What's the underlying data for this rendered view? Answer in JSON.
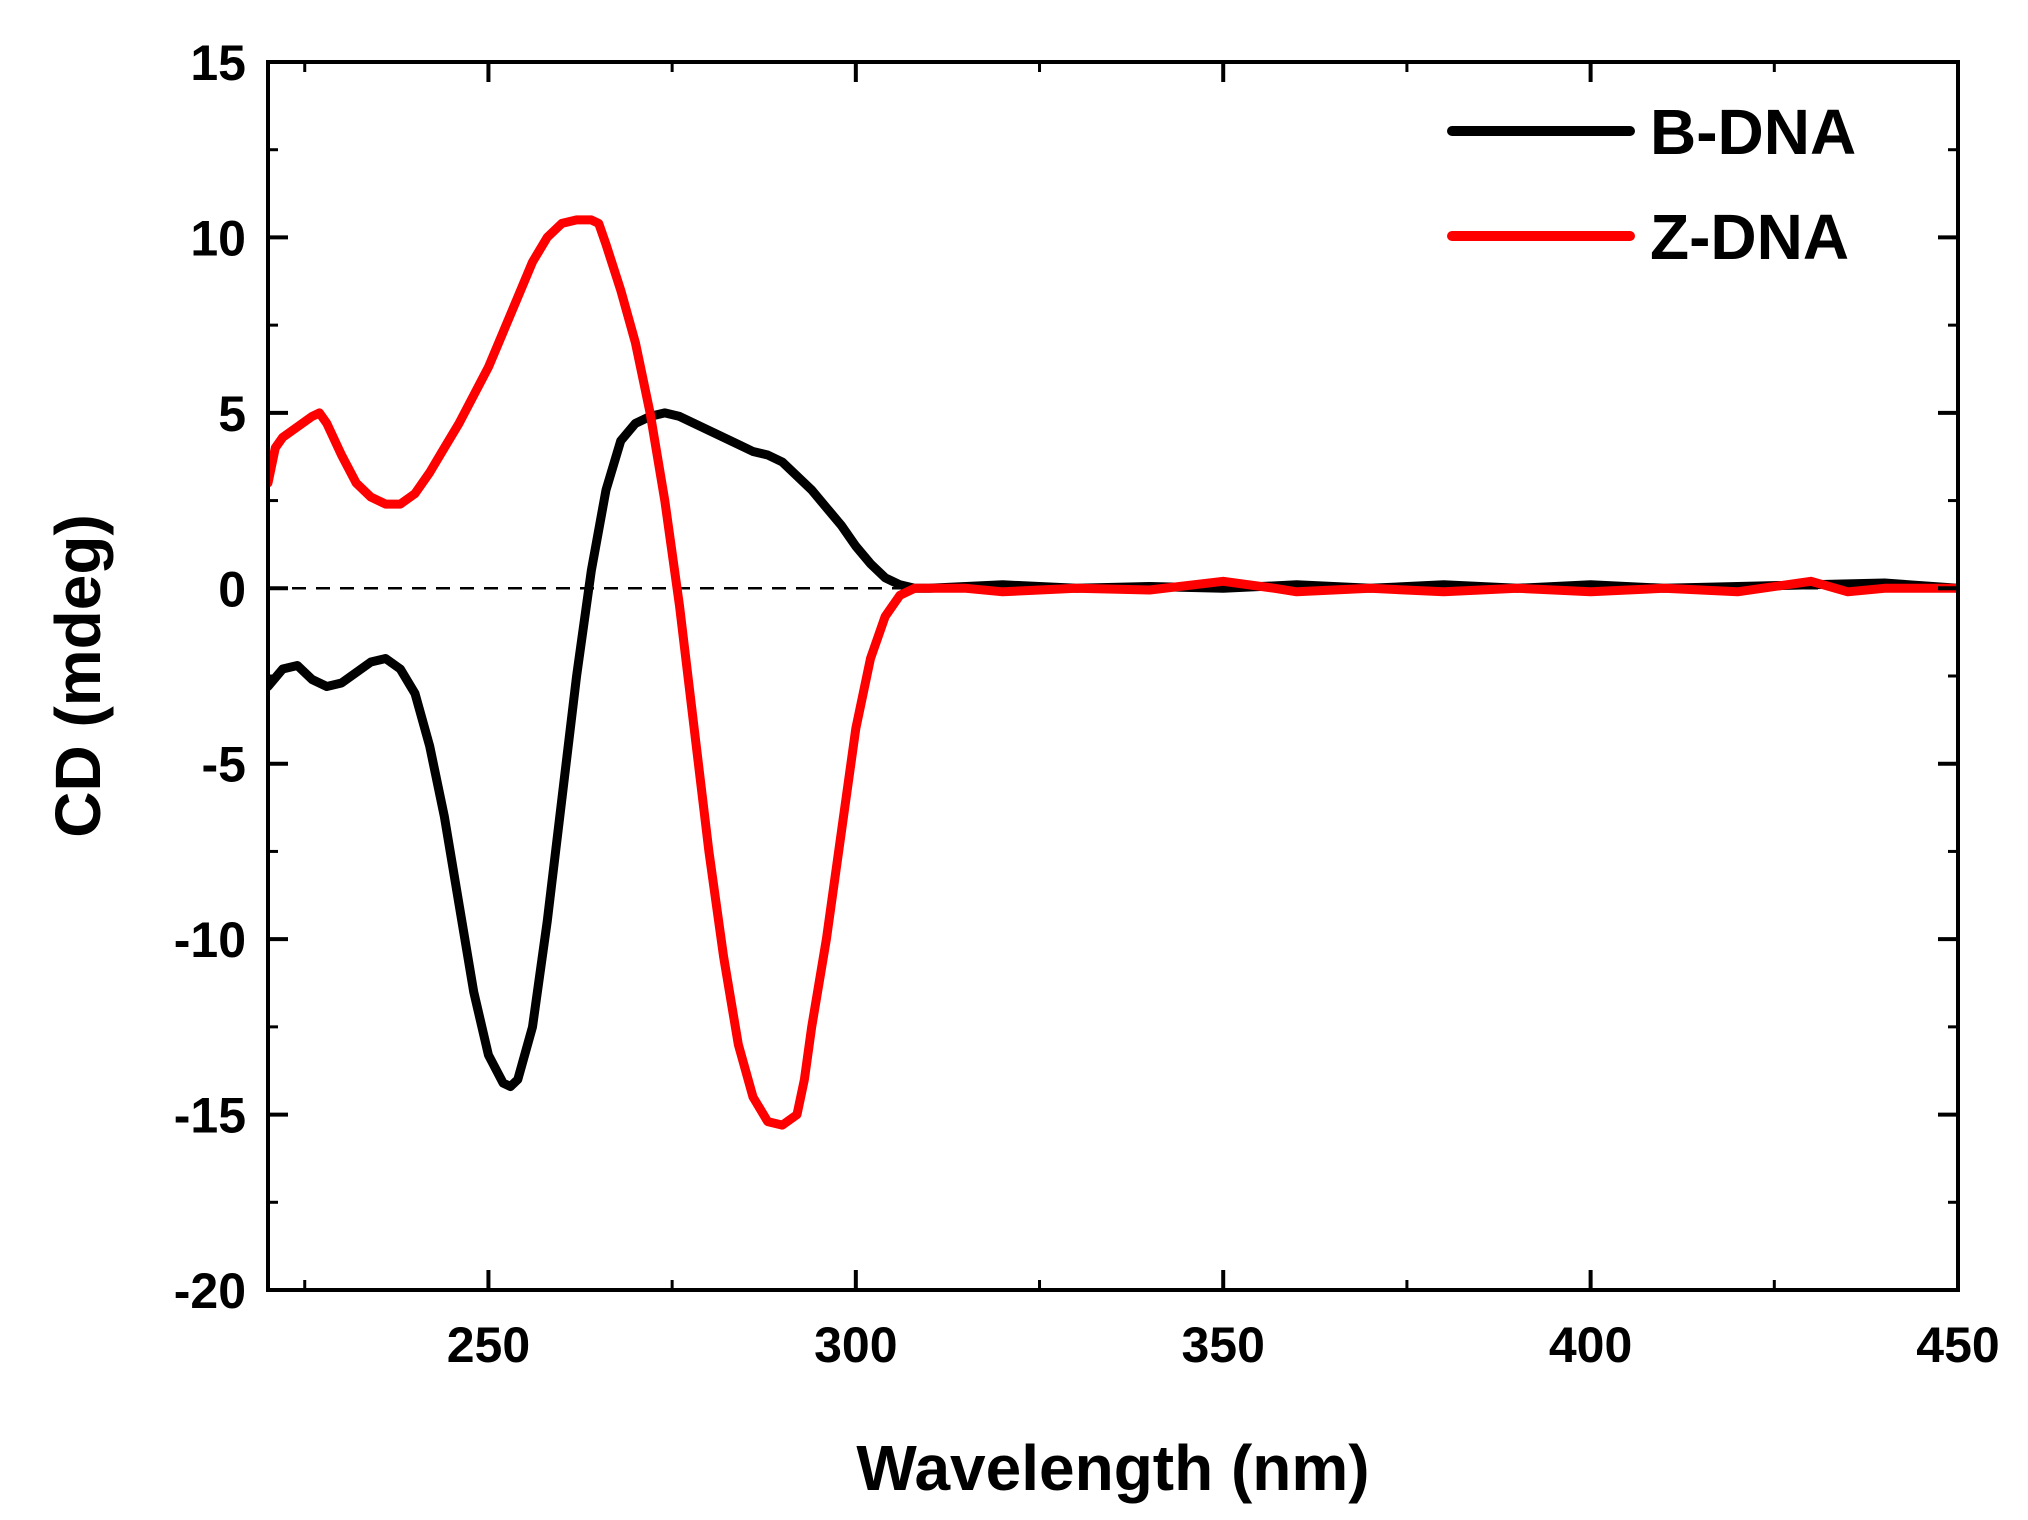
{
  "chart_data": {
    "type": "line",
    "title": "",
    "xlabel": "Wavelength (nm)",
    "ylabel": "CD (mdeg)",
    "xlim": [
      220,
      450
    ],
    "ylim": [
      -20,
      15
    ],
    "x_ticks": [
      250,
      300,
      350,
      400,
      450
    ],
    "y_ticks": [
      -20,
      -15,
      -10,
      -5,
      0,
      5,
      10,
      15
    ],
    "x_tick_labels": [
      "250",
      "300",
      "350",
      "400",
      "450"
    ],
    "y_tick_labels": [
      "-20",
      "-15",
      "-10",
      "-5",
      "0",
      "5",
      "10",
      "15"
    ],
    "reference_line": {
      "y": 0,
      "style": "dashed"
    },
    "legend_position": "top-right",
    "series": [
      {
        "name": "B-DNA",
        "color": "#000000",
        "x": [
          220,
          222,
          224,
          226,
          228,
          230,
          232,
          234,
          236,
          238,
          240,
          242,
          244,
          246,
          248,
          250,
          252,
          253,
          254,
          256,
          258,
          260,
          262,
          264,
          266,
          268,
          270,
          272,
          274,
          276,
          278,
          280,
          282,
          284,
          286,
          288,
          290,
          292,
          294,
          296,
          298,
          300,
          302,
          304,
          306,
          308,
          310,
          315,
          320,
          330,
          340,
          350,
          360,
          370,
          380,
          390,
          400,
          410,
          420,
          430,
          440,
          450
        ],
        "y": [
          -2.8,
          -2.3,
          -2.2,
          -2.6,
          -2.8,
          -2.7,
          -2.4,
          -2.1,
          -2.0,
          -2.3,
          -3.0,
          -4.5,
          -6.5,
          -9.0,
          -11.5,
          -13.3,
          -14.1,
          -14.2,
          -14.0,
          -12.5,
          -9.5,
          -6.0,
          -2.5,
          0.5,
          2.8,
          4.2,
          4.7,
          4.9,
          5.0,
          4.9,
          4.7,
          4.5,
          4.3,
          4.1,
          3.9,
          3.8,
          3.6,
          3.2,
          2.8,
          2.3,
          1.8,
          1.2,
          0.7,
          0.3,
          0.1,
          0.0,
          0.0,
          0.05,
          0.1,
          0.0,
          0.05,
          0.0,
          0.1,
          0.0,
          0.1,
          0.0,
          0.1,
          0.0,
          0.05,
          0.1,
          0.15,
          0.0
        ]
      },
      {
        "name": "Z-DNA",
        "color": "#ff0000",
        "x": [
          220,
          221,
          222,
          224,
          226,
          227,
          228,
          230,
          232,
          234,
          236,
          238,
          240,
          242,
          244,
          246,
          248,
          250,
          252,
          254,
          256,
          258,
          260,
          262,
          264,
          265,
          266,
          268,
          270,
          272,
          274,
          276,
          278,
          280,
          282,
          284,
          286,
          288,
          290,
          292,
          293,
          294,
          296,
          298,
          300,
          302,
          304,
          306,
          308,
          310,
          312,
          315,
          320,
          330,
          340,
          350,
          357,
          360,
          370,
          380,
          390,
          400,
          410,
          420,
          430,
          435,
          440,
          450
        ],
        "y": [
          3.0,
          4.0,
          4.3,
          4.6,
          4.9,
          5.0,
          4.7,
          3.8,
          3.0,
          2.6,
          2.4,
          2.4,
          2.7,
          3.3,
          4.0,
          4.7,
          5.5,
          6.3,
          7.3,
          8.3,
          9.3,
          10.0,
          10.4,
          10.5,
          10.5,
          10.4,
          9.8,
          8.5,
          7.0,
          5.0,
          2.5,
          -0.5,
          -4.0,
          -7.5,
          -10.5,
          -13.0,
          -14.5,
          -15.2,
          -15.3,
          -15.0,
          -14.0,
          -12.5,
          -10.0,
          -7.0,
          -4.0,
          -2.0,
          -0.8,
          -0.2,
          0.0,
          0.0,
          0.0,
          0.0,
          -0.1,
          0.0,
          -0.05,
          0.2,
          0.0,
          -0.1,
          0.0,
          -0.1,
          0.0,
          -0.1,
          0.0,
          -0.1,
          0.2,
          -0.1,
          0.0,
          0.0
        ]
      }
    ]
  }
}
